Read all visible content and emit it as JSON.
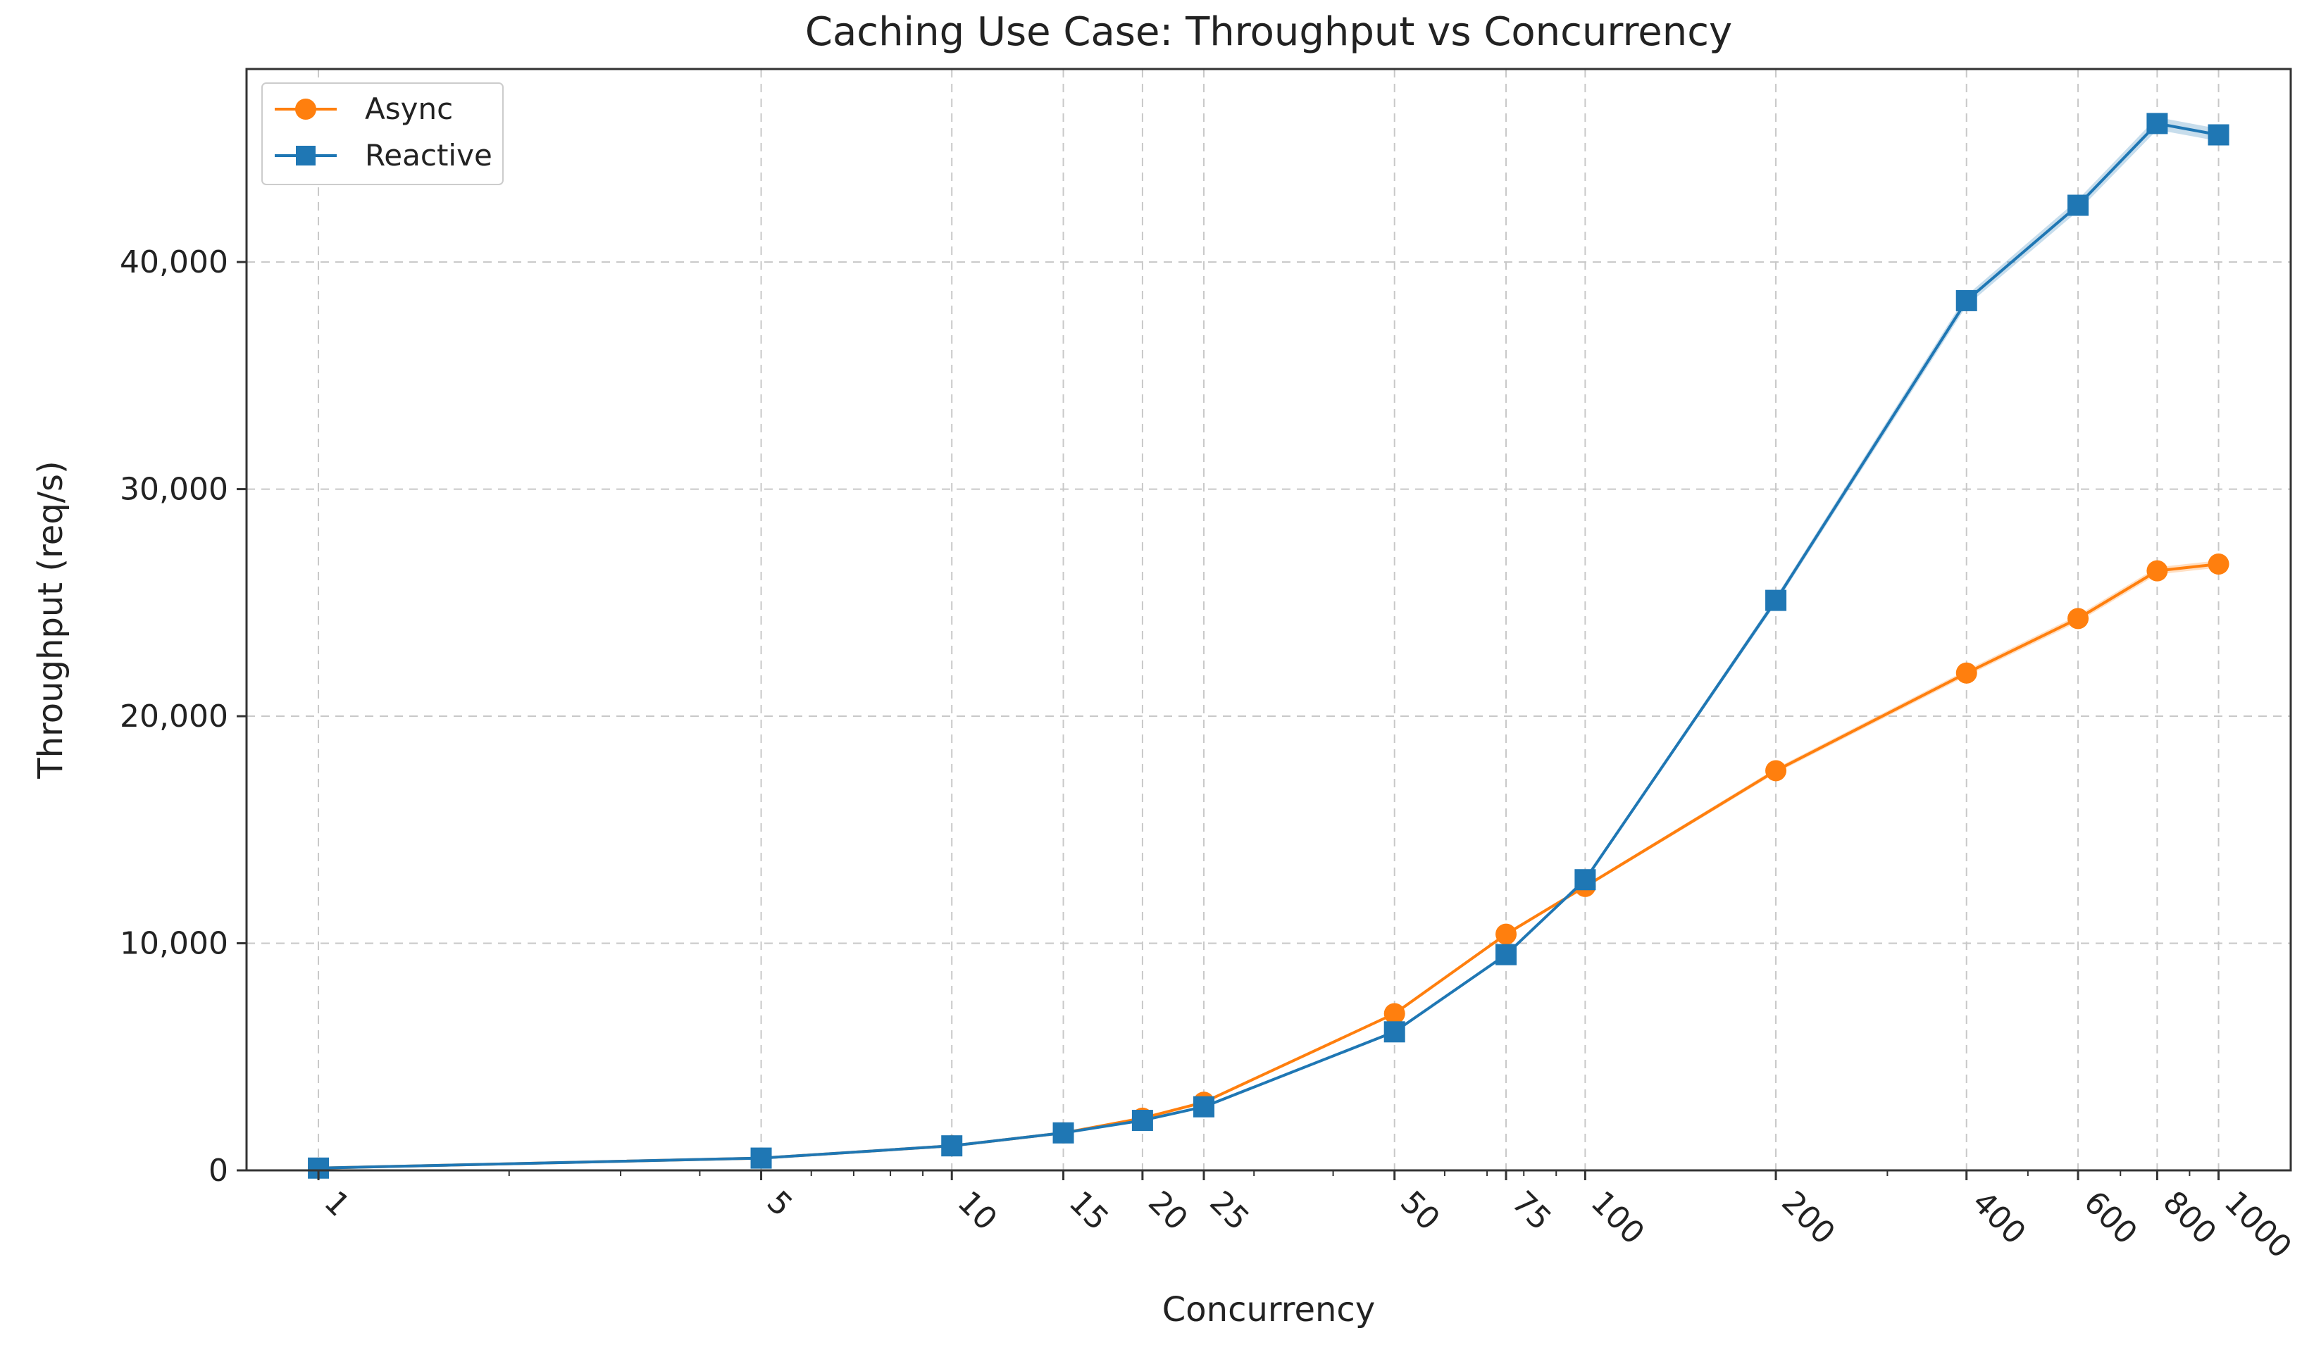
{
  "chart_data": {
    "type": "line",
    "title": "Caching Use Case: Throughput vs Concurrency",
    "xlabel": "Concurrency",
    "ylabel": "Throughput (req/s)",
    "xscale": "log",
    "x": [
      1,
      5,
      10,
      15,
      20,
      25,
      50,
      75,
      100,
      200,
      400,
      600,
      800,
      1000
    ],
    "x_tick_labels": [
      "1",
      "5",
      "10",
      "15",
      "20",
      "25",
      "50",
      "75",
      "100",
      "200",
      "400",
      "600",
      "800",
      "1000"
    ],
    "xlim": [
      0.77,
      1300
    ],
    "ylim": [
      0,
      48500
    ],
    "y_ticks": [
      0,
      10000,
      20000,
      30000,
      40000
    ],
    "y_tick_labels": [
      "0",
      "10,000",
      "20,000",
      "30,000",
      "40,000"
    ],
    "grid": true,
    "legend_position": "top-left",
    "series": [
      {
        "name": "Async",
        "color": "#ff7f0e",
        "marker": "circle",
        "values": [
          100,
          540,
          1080,
          1650,
          2300,
          3000,
          6900,
          10400,
          12500,
          17600,
          21900,
          24300,
          26400,
          26700
        ]
      },
      {
        "name": "Reactive",
        "color": "#1f77b4",
        "marker": "square",
        "values": [
          100,
          540,
          1080,
          1650,
          2200,
          2800,
          6100,
          9500,
          12800,
          25100,
          38300,
          42500,
          46100,
          45600
        ]
      }
    ]
  }
}
